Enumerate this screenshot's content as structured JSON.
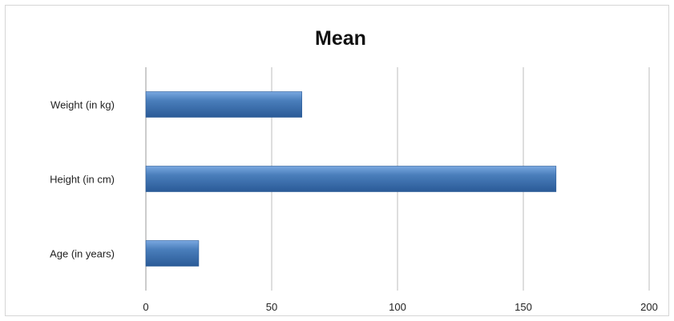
{
  "chart_data": {
    "type": "bar",
    "orientation": "horizontal",
    "title": "Mean",
    "xlabel": "",
    "ylabel": "",
    "categories": [
      "Weight (in kg)",
      "Height (in cm)",
      "Age (in years)"
    ],
    "values": [
      62,
      163,
      21
    ],
    "xlim": [
      0,
      200
    ],
    "ticks": [
      "0",
      "50",
      "100",
      "150",
      "200"
    ],
    "tick_values": [
      0,
      50,
      100,
      150,
      200
    ],
    "grid": true,
    "legend": "none",
    "bar_color": "#4a7ebb",
    "bar_color_light": "#7aa8e0",
    "bar_color_dark": "#2a5a97"
  }
}
